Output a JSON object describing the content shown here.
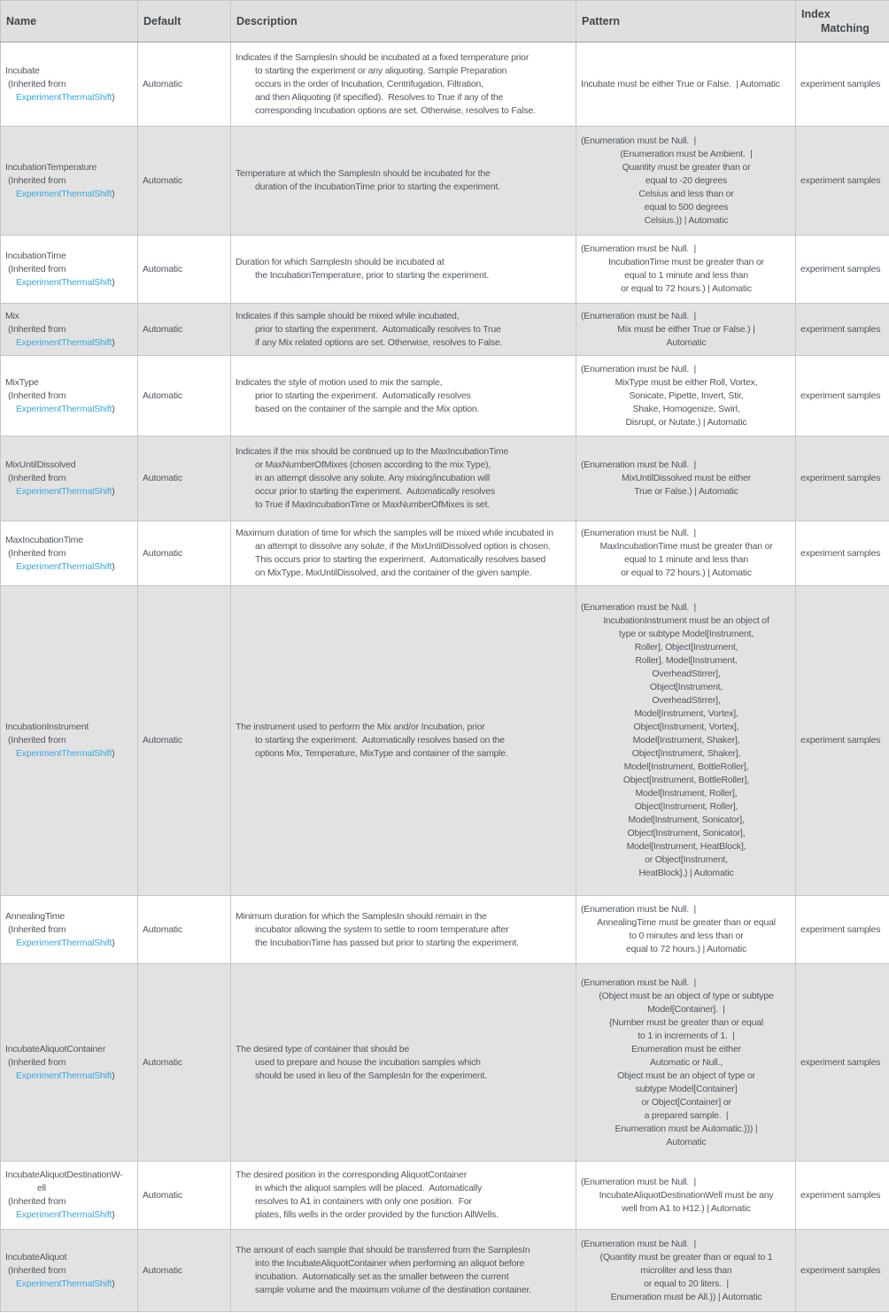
{
  "colors": {
    "link": "#3aa7dd",
    "row_shade": "#e2e2e2",
    "header_bg": "#dfdfdf"
  },
  "header": {
    "name": "Name",
    "default": "Default",
    "description": "Description",
    "pattern": "Pattern",
    "index_matching_lines": [
      "Index",
      "Matching"
    ]
  },
  "rows": [
    {
      "name_lines": [
        "Incubate"
      ],
      "inherited_prefix": "(Inherited from",
      "inherited_link": "ExperimentThermalShift",
      "inherited_suffix": ")",
      "default": "Automatic",
      "description_lines": [
        "Indicates if the SamplesIn should be incubated at a fixed temperature prior",
        "to starting the experiment or any aliquoting. Sample Preparation",
        "occurs in the order of Incubation, Centrifugation, Filtration,",
        "and then Aliquoting (if specified).  Resolves to True if any of the",
        "corresponding Incubation options are set. Otherwise, resolves to False."
      ],
      "pattern_lines": [
        "Incubate must be either True or False.  | Automatic"
      ],
      "index_matching": "experiment samples"
    },
    {
      "name_lines": [
        "IncubationTemperature"
      ],
      "inherited_prefix": "(Inherited from",
      "inherited_link": "ExperimentThermalShift",
      "inherited_suffix": ")",
      "default": "Automatic",
      "description_lines": [
        "Temperature at which the SamplesIn should be incubated for the",
        "duration of the IncubationTime prior to starting the experiment."
      ],
      "pattern_lines": [
        "(Enumeration must be Null.  |",
        "(Enumeration must be Ambient.  |",
        "Quantity must be greater than or",
        "equal to -20 degrees",
        "Celsius and less than or",
        "equal to 500 degrees",
        "Celsius.)) | Automatic"
      ],
      "index_matching": "experiment samples"
    },
    {
      "name_lines": [
        "IncubationTime"
      ],
      "inherited_prefix": "(Inherited from",
      "inherited_link": "ExperimentThermalShift",
      "inherited_suffix": ")",
      "default": "Automatic",
      "description_lines": [
        "Duration for which SamplesIn should be incubated at",
        "the IncubationTemperature, prior to starting the experiment."
      ],
      "pattern_lines": [
        "(Enumeration must be Null.  |",
        "IncubationTime must be greater than or",
        "equal to 1 minute and less than",
        "or equal to 72 hours.) | Automatic"
      ],
      "index_matching": "experiment samples"
    },
    {
      "name_lines": [
        "Mix"
      ],
      "inherited_prefix": "(Inherited from",
      "inherited_link": "ExperimentThermalShift",
      "inherited_suffix": ")",
      "default": "Automatic",
      "description_lines": [
        "Indicates if this sample should be mixed while incubated,",
        "prior to starting the experiment.  Automatically resolves to True",
        "if any Mix related options are set. Otherwise, resolves to False."
      ],
      "pattern_lines": [
        "(Enumeration must be Null.  |",
        "Mix must be either True or False.) |",
        "Automatic"
      ],
      "index_matching": "experiment samples"
    },
    {
      "name_lines": [
        "MixType"
      ],
      "inherited_prefix": "(Inherited from",
      "inherited_link": "ExperimentThermalShift",
      "inherited_suffix": ")",
      "default": "Automatic",
      "description_lines": [
        "Indicates the style of motion used to mix the sample,",
        "prior to starting the experiment.  Automatically resolves",
        "based on the container of the sample and the Mix option."
      ],
      "pattern_lines": [
        "(Enumeration must be Null.  |",
        "MixType must be either Roll, Vortex,",
        "Sonicate, Pipette, Invert, Stir,",
        "Shake, Homogenize, Swirl,",
        "Disrupt, or Nutate.) | Automatic"
      ],
      "index_matching": "experiment samples"
    },
    {
      "name_lines": [
        "MixUntilDissolved"
      ],
      "inherited_prefix": "(Inherited from",
      "inherited_link": "ExperimentThermalShift",
      "inherited_suffix": ")",
      "default": "Automatic",
      "description_lines": [
        "Indicates if the mix should be continued up to the MaxIncubationTime",
        "or MaxNumberOfMixes (chosen according to the mix Type),",
        "in an attempt dissolve any solute. Any mixing/incubation will",
        "occur prior to starting the experiment.  Automatically resolves",
        "to True if MaxIncubationTime or MaxNumberOfMixes is set."
      ],
      "pattern_lines": [
        "(Enumeration must be Null.  |",
        "MixUntilDissolved must be either",
        "True or False.) | Automatic"
      ],
      "index_matching": "experiment samples"
    },
    {
      "name_lines": [
        "MaxIncubationTime"
      ],
      "inherited_prefix": "(Inherited from",
      "inherited_link": "ExperimentThermalShift",
      "inherited_suffix": ")",
      "default": "Automatic",
      "description_lines": [
        "Maximum duration of time for which the samples will be mixed while incubated in",
        "an attempt to dissolve any solute, if the MixUntilDissolved option is chosen.",
        "This occurs prior to starting the experiment.  Automatically resolves based",
        "on MixType, MixUntilDissolved, and the container of the given sample."
      ],
      "pattern_lines": [
        "(Enumeration must be Null.  |",
        "MaxIncubationTime must be greater than or",
        "equal to 1 minute and less than",
        "or equal to 72 hours.) | Automatic"
      ],
      "index_matching": "experiment samples"
    },
    {
      "name_lines": [
        "IncubationInstrument"
      ],
      "inherited_prefix": "(Inherited from",
      "inherited_link": "ExperimentThermalShift",
      "inherited_suffix": ")",
      "default": "Automatic",
      "description_lines": [
        "The instrument used to perform the Mix and/or Incubation, prior",
        "to starting the experiment.  Automatically resolves based on the",
        "options Mix, Temperature, MixType and container of the sample."
      ],
      "pattern_lines": [
        "(Enumeration must be Null.  |",
        "IncubationInstrument must be an object of",
        "type or subtype Model[Instrument,",
        "Roller], Object[Instrument,",
        "Roller], Model[Instrument,",
        "OverheadStirrer],",
        "Object[Instrument,",
        "OverheadStirrer],",
        "Model[Instrument, Vortex],",
        "Object[Instrument, Vortex],",
        "Model[Instrument, Shaker],",
        "Object[Instrument, Shaker],",
        "Model[Instrument, BottleRoller],",
        "Object[Instrument, BottleRoller],",
        "Model[Instrument, Roller],",
        "Object[Instrument, Roller],",
        "Model[Instrument, Sonicator],",
        "Object[Instrument, Sonicator],",
        "Model[Instrument, HeatBlock],",
        "or Object[Instrument,",
        "HeatBlock].) | Automatic"
      ],
      "index_matching": "experiment samples"
    },
    {
      "name_lines": [
        "AnnealingTime"
      ],
      "inherited_prefix": "(Inherited from",
      "inherited_link": "ExperimentThermalShift",
      "inherited_suffix": ")",
      "default": "Automatic",
      "description_lines": [
        "Minimum duration for which the SamplesIn should remain in the",
        "incubator allowing the system to settle to room temperature after",
        "the IncubationTime has passed but prior to starting the experiment."
      ],
      "pattern_lines": [
        "(Enumeration must be Null.  |",
        "AnnealingTime must be greater than or equal",
        "to 0 minutes and less than or",
        "equal to 72 hours.) | Automatic"
      ],
      "index_matching": "experiment samples"
    },
    {
      "name_lines": [
        "IncubateAliquotContainer"
      ],
      "inherited_prefix": "(Inherited from",
      "inherited_link": "ExperimentThermalShift",
      "inherited_suffix": ")",
      "default": "Automatic",
      "description_lines": [
        "The desired type of container that should be",
        "used to prepare and house the incubation samples which",
        "should be used in lieu of the SamplesIn for the experiment."
      ],
      "pattern_lines": [
        "(Enumeration must be Null.  |",
        "(Object must be an object of type or subtype",
        "Model[Container].  |",
        "{Number must be greater than or equal",
        "to 1 in increments of 1.  |",
        "Enumeration must be either",
        "Automatic or Null.,",
        "Object must be an object of type or",
        "subtype Model[Container]",
        "or Object[Container] or",
        "a prepared sample.  |",
        "Enumeration must be Automatic.})) |",
        "Automatic"
      ],
      "index_matching": "experiment samples"
    },
    {
      "name_lines": [
        "IncubateAliquotDestinationW-",
        "ell"
      ],
      "inherited_prefix": "(Inherited from",
      "inherited_link": "ExperimentThermalShift",
      "inherited_suffix": ")",
      "default": "Automatic",
      "description_lines": [
        "The desired position in the corresponding AliquotContainer",
        "in which the aliquot samples will be placed.  Automatically",
        "resolves to A1 in containers with only one position.  For",
        "plates, fills wells in the order provided by the function AllWells."
      ],
      "pattern_lines": [
        "(Enumeration must be Null.  |",
        "IncubateAliquotDestinationWell must be any",
        "well from A1 to H12.) | Automatic"
      ],
      "index_matching": "experiment samples"
    },
    {
      "name_lines": [
        "IncubateAliquot"
      ],
      "inherited_prefix": "(Inherited from",
      "inherited_link": "ExperimentThermalShift",
      "inherited_suffix": ")",
      "default": "Automatic",
      "description_lines": [
        "The amount of each sample that should be transferred from the SamplesIn",
        "into the IncubateAliquotContainer when performing an aliquot before",
        "incubation.  Automatically set as the smaller between the current",
        "sample volume and the maximum volume of the destination container."
      ],
      "pattern_lines": [
        "(Enumeration must be Null.  |",
        "(Quantity must be greater than or equal to 1",
        "microliter and less than",
        "or equal to 20 liters.  |",
        "Enumeration must be All.)) | Automatic"
      ],
      "index_matching": "experiment samples"
    }
  ]
}
